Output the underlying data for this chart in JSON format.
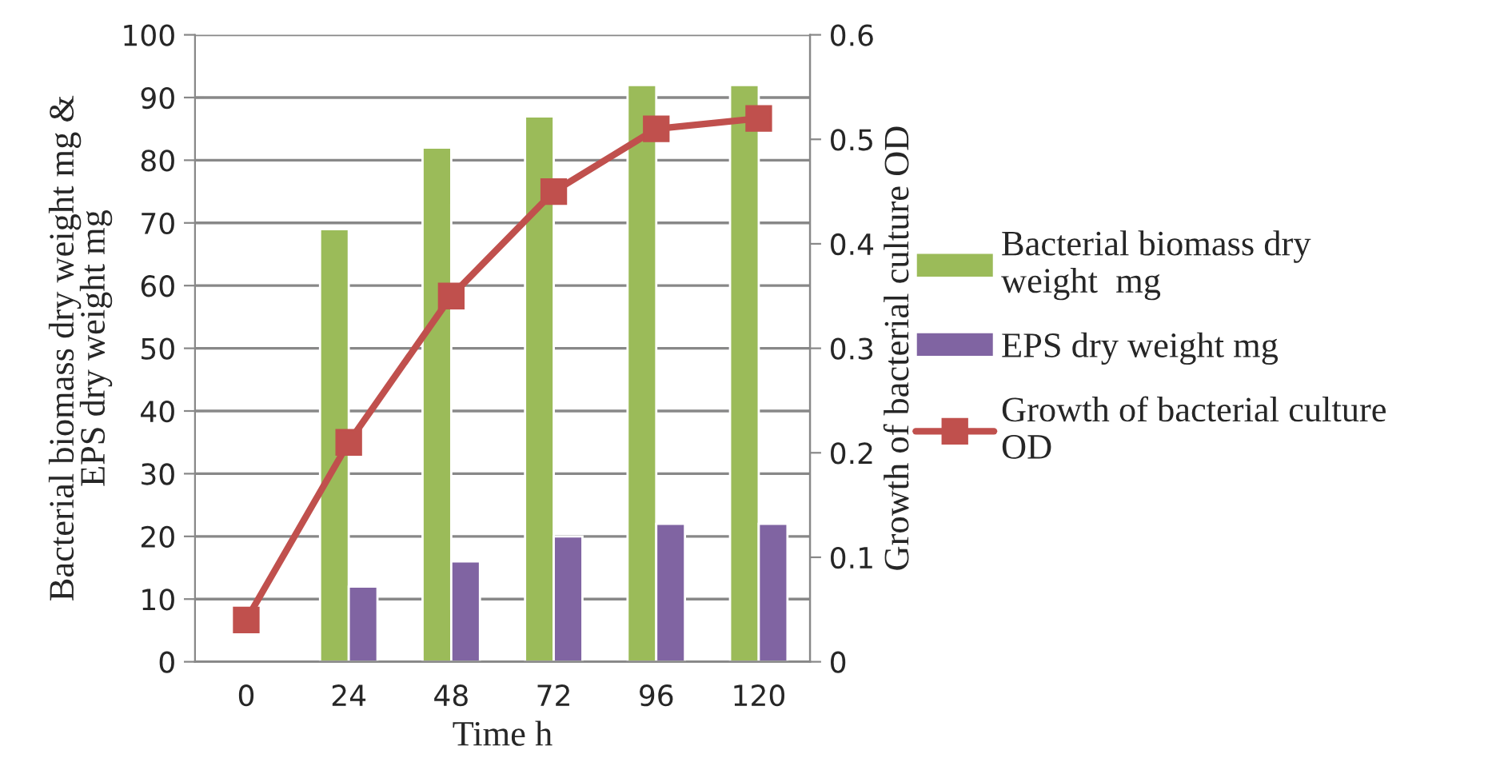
{
  "chart_data": {
    "type": "bar",
    "categories": [
      "0",
      "24",
      "48",
      "72",
      "96",
      "120"
    ],
    "xlabel": "Time h",
    "ylabel": "Bacterial biomass dry weight mg &\nEPS dry weight mg",
    "y2label": "Growth of bacterial culture OD",
    "ylim": [
      0,
      100
    ],
    "yticks": [
      0,
      10,
      20,
      30,
      40,
      50,
      60,
      70,
      80,
      90,
      100
    ],
    "y2lim": [
      0,
      0.6
    ],
    "y2ticks": [
      0,
      0.1,
      0.2,
      0.3,
      0.4,
      0.5,
      0.6
    ],
    "grid": "y",
    "legend": "right",
    "series": [
      {
        "name": "Bacterial biomass dry\nweight  mg",
        "color": "#9bbb59",
        "values": [
          null,
          69,
          82,
          87,
          92,
          92
        ]
      },
      {
        "name": "EPS dry weight mg",
        "color": "#8064a2",
        "values": [
          null,
          12,
          16,
          20,
          22,
          22
        ]
      },
      {
        "name": "Growth of bacterial culture\nOD",
        "color": "#c0504d",
        "type": "line",
        "axis": "y2",
        "marker": "square",
        "line_style": "solid",
        "values": [
          0.04,
          0.21,
          0.35,
          0.45,
          0.51,
          0.52
        ]
      }
    ]
  }
}
